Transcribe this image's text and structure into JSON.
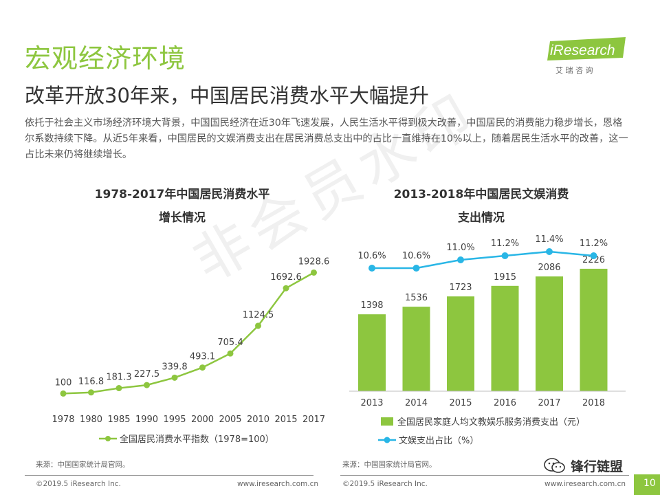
{
  "header": {
    "section_title": "宏观经济环境",
    "slide_title": "改革开放30年来，中国居民消费水平大幅提升",
    "intro": "依托于社会主义市场经济环境大背景，中国国民经济在近30年飞速发展，人民生活水平得到极大改善，中国居民的消费能力稳步增长，恩格尔系数持续下降。从近5年来看，中国居民的文娱消费支出在居民消费总支出中的占比一直维持在10%以上，随着居民生活水平的改善，这一占比未来仍将继续增长。"
  },
  "logo": {
    "brand": "iResearch",
    "cn": "艾 瑞 咨 询",
    "color": "#8dc63f"
  },
  "watermark": "非会员水印",
  "chart_data": [
    {
      "type": "line",
      "title_line1": "1978-2017年中国居民消费水平",
      "title_line2": "增长情况",
      "categories": [
        "1978",
        "1980",
        "1985",
        "1990",
        "1995",
        "2000",
        "2005",
        "2010",
        "2015",
        "2017"
      ],
      "series": [
        {
          "name": "全国居民消费水平指数（1978=100）",
          "values": [
            100,
            116.8,
            181.3,
            227.5,
            339.8,
            493.1,
            705.4,
            1124.5,
            1692.6,
            1928.6
          ],
          "labels": [
            "100",
            "116.8",
            "181.3",
            "227.5",
            "339.8",
            "493.1",
            "705.4",
            "1124.5",
            "1692.6",
            "1928.6"
          ],
          "color": "#8dc63f"
        }
      ],
      "ylim": [
        0,
        2100
      ],
      "grid": false,
      "legend": "bottom"
    },
    {
      "type": "bar",
      "title_line1": "2013-2018年中国居民文娱消费",
      "title_line2": "支出情况",
      "categories": [
        "2013",
        "2014",
        "2015",
        "2016",
        "2017",
        "2018"
      ],
      "series": [
        {
          "name": "全国居民家庭人均文教娱乐服务消费支出（元）",
          "values": [
            1398,
            1536,
            1723,
            1915,
            2086,
            2226
          ],
          "labels": [
            "1398",
            "1536",
            "1723",
            "1915",
            "2086",
            "2226"
          ],
          "color": "#8dc63f",
          "kind": "bar"
        },
        {
          "name": "文娱支出占比（%）",
          "values": [
            10.6,
            10.6,
            11.0,
            11.2,
            11.4,
            11.2
          ],
          "labels": [
            "10.6%",
            "10.6%",
            "11.0%",
            "11.2%",
            "11.4%",
            "11.2%"
          ],
          "color": "#29b6e6",
          "kind": "line"
        }
      ],
      "ylim": [
        0,
        2600
      ],
      "grid": false,
      "legend": "bottom"
    }
  ],
  "sources": {
    "left": "来源：中国国家统计局官网。",
    "right": "来源：中国国家统计局官网。"
  },
  "footer": {
    "copyright_left": "©2019.5 iResearch Inc.",
    "url_left": "www.iresearch.com.cn",
    "copyright_right": "©2019.5 iResearch Inc.",
    "url_right": "www.iresearch.com.cn",
    "page": "10",
    "wechat": "锋行链盟"
  }
}
